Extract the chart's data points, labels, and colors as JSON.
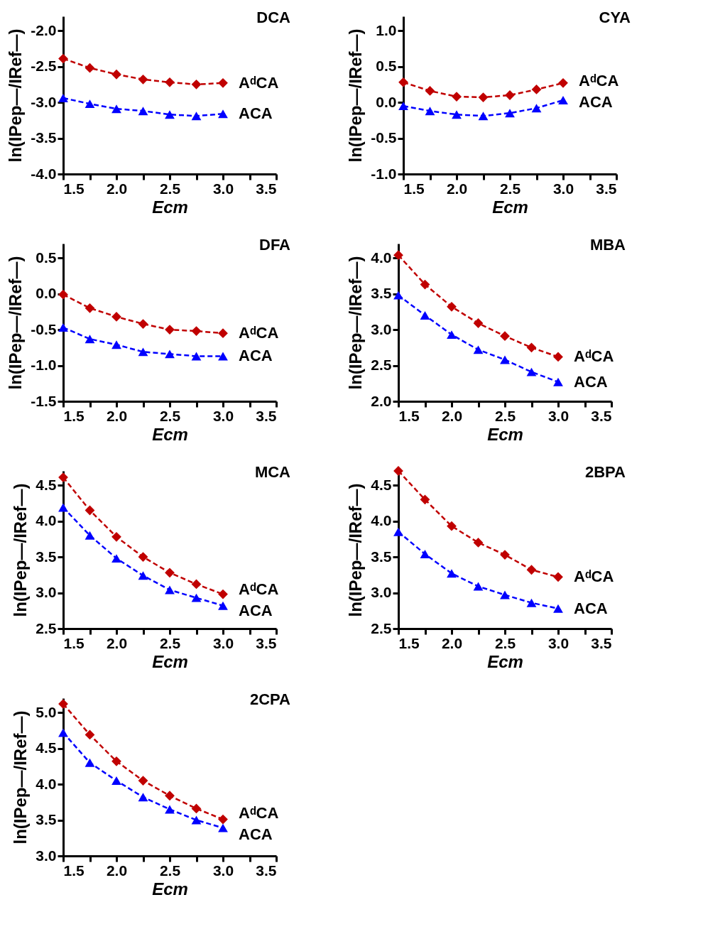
{
  "chart_data": [
    {
      "type": "line",
      "title": "DCA",
      "xlabel": "Ecm",
      "ylabel": "ln(IPep—/IRef—)",
      "x": [
        1.5,
        1.75,
        2.0,
        2.25,
        2.5,
        2.75,
        3.0
      ],
      "xlim": [
        1.5,
        3.5
      ],
      "ylim": [
        -4.0,
        -1.8
      ],
      "xticks": [
        {
          "value": 1.5,
          "label": "1.5"
        },
        {
          "value": 1.75,
          "label": null
        },
        {
          "value": 2,
          "label": "2.0"
        },
        {
          "value": 2.25,
          "label": null
        },
        {
          "value": 2.5,
          "label": "2.5"
        },
        {
          "value": 2.75,
          "label": null
        },
        {
          "value": 3,
          "label": "3.0"
        },
        {
          "value": 3.25,
          "label": null
        },
        {
          "value": 3.5,
          "label": "3.5"
        }
      ],
      "yticks": [
        {
          "value": -4,
          "label": "-4.0"
        },
        {
          "value": -3.5,
          "label": "-3.5"
        },
        {
          "value": -3,
          "label": "-3.0"
        },
        {
          "value": -2.5,
          "label": "-2.5"
        },
        {
          "value": -2,
          "label": "-2.0"
        }
      ],
      "grid": false,
      "line_style": "dashed",
      "series": [
        {
          "name": "AᵈCA",
          "color": "#c00000",
          "marker": "diamond",
          "values": [
            -2.39,
            -2.52,
            -2.61,
            -2.68,
            -2.72,
            -2.75,
            -2.73
          ]
        },
        {
          "name": "ACA",
          "color": "#0000ff",
          "marker": "triangle",
          "values": [
            -2.94,
            -3.02,
            -3.09,
            -3.12,
            -3.17,
            -3.19,
            -3.16
          ]
        }
      ]
    },
    {
      "type": "line",
      "title": "CYA",
      "xlabel": "Ecm",
      "ylabel": "ln(IPep—/IRef—)",
      "x": [
        1.5,
        1.75,
        2.0,
        2.25,
        2.5,
        2.75,
        3.0
      ],
      "xlim": [
        1.5,
        3.5
      ],
      "ylim": [
        -1.0,
        1.2
      ],
      "xticks": [
        {
          "value": 1.5,
          "label": "1.5"
        },
        {
          "value": 1.75,
          "label": null
        },
        {
          "value": 2,
          "label": "2.0"
        },
        {
          "value": 2.25,
          "label": null
        },
        {
          "value": 2.5,
          "label": "2.5"
        },
        {
          "value": 2.75,
          "label": null
        },
        {
          "value": 3,
          "label": "3.0"
        },
        {
          "value": 3.25,
          "label": null
        },
        {
          "value": 3.5,
          "label": "3.5"
        }
      ],
      "yticks": [
        {
          "value": -1,
          "label": "-1.0"
        },
        {
          "value": -0.5,
          "label": "-0.5"
        },
        {
          "value": 0,
          "label": "0.0"
        },
        {
          "value": 0.5,
          "label": "0.5"
        },
        {
          "value": 1,
          "label": "1.0"
        }
      ],
      "grid": false,
      "line_style": "dashed",
      "series": [
        {
          "name": "AᵈCA",
          "color": "#c00000",
          "marker": "diamond",
          "values": [
            0.28,
            0.16,
            0.08,
            0.07,
            0.1,
            0.18,
            0.27
          ]
        },
        {
          "name": "ACA",
          "color": "#0000ff",
          "marker": "triangle",
          "values": [
            -0.05,
            -0.12,
            -0.17,
            -0.19,
            -0.15,
            -0.08,
            0.03
          ]
        }
      ]
    },
    {
      "type": "line",
      "title": "DFA",
      "xlabel": "Ecm",
      "ylabel": "ln(IPep—/IRef—)",
      "x": [
        1.5,
        1.75,
        2.0,
        2.25,
        2.5,
        2.75,
        3.0
      ],
      "xlim": [
        1.5,
        3.5
      ],
      "ylim": [
        -1.5,
        0.7
      ],
      "xticks": [
        {
          "value": 1.5,
          "label": "1.5"
        },
        {
          "value": 1.75,
          "label": null
        },
        {
          "value": 2,
          "label": "2.0"
        },
        {
          "value": 2.25,
          "label": null
        },
        {
          "value": 2.5,
          "label": "2.5"
        },
        {
          "value": 2.75,
          "label": null
        },
        {
          "value": 3,
          "label": "3.0"
        },
        {
          "value": 3.25,
          "label": null
        },
        {
          "value": 3.5,
          "label": "3.5"
        }
      ],
      "yticks": [
        {
          "value": -1.5,
          "label": "-1.5"
        },
        {
          "value": -1,
          "label": "-1.0"
        },
        {
          "value": -0.5,
          "label": "-0.5"
        },
        {
          "value": 0,
          "label": "0.0"
        },
        {
          "value": 0.5,
          "label": "0.5"
        }
      ],
      "grid": false,
      "line_style": "dashed",
      "series": [
        {
          "name": "AᵈCA",
          "color": "#c00000",
          "marker": "diamond",
          "values": [
            -0.01,
            -0.2,
            -0.32,
            -0.42,
            -0.5,
            -0.52,
            -0.55
          ]
        },
        {
          "name": "ACA",
          "color": "#0000ff",
          "marker": "triangle",
          "values": [
            -0.47,
            -0.63,
            -0.71,
            -0.81,
            -0.84,
            -0.87,
            -0.87
          ]
        }
      ]
    },
    {
      "type": "line",
      "title": "MBA",
      "xlabel": "Ecm",
      "ylabel": "ln(IPep—/IRef—)",
      "x": [
        1.5,
        1.75,
        2.0,
        2.25,
        2.5,
        2.75,
        3.0
      ],
      "xlim": [
        1.5,
        3.5
      ],
      "ylim": [
        2.0,
        4.2
      ],
      "xticks": [
        {
          "value": 1.5,
          "label": "1.5"
        },
        {
          "value": 1.75,
          "label": null
        },
        {
          "value": 2,
          "label": "2.0"
        },
        {
          "value": 2.25,
          "label": null
        },
        {
          "value": 2.5,
          "label": "2.5"
        },
        {
          "value": 2.75,
          "label": null
        },
        {
          "value": 3,
          "label": "3.0"
        },
        {
          "value": 3.25,
          "label": null
        },
        {
          "value": 3.5,
          "label": "3.5"
        }
      ],
      "yticks": [
        {
          "value": 2,
          "label": "2.0"
        },
        {
          "value": 2.5,
          "label": "2.5"
        },
        {
          "value": 3,
          "label": "3.0"
        },
        {
          "value": 3.5,
          "label": "3.5"
        },
        {
          "value": 4,
          "label": "4.0"
        }
      ],
      "grid": false,
      "line_style": "dashed",
      "series": [
        {
          "name": "AᵈCA",
          "color": "#c00000",
          "marker": "diamond",
          "values": [
            4.04,
            3.63,
            3.32,
            3.09,
            2.91,
            2.75,
            2.62
          ]
        },
        {
          "name": "ACA",
          "color": "#0000ff",
          "marker": "triangle",
          "values": [
            3.48,
            3.2,
            2.93,
            2.72,
            2.58,
            2.41,
            2.27
          ]
        }
      ]
    },
    {
      "type": "line",
      "title": "MCA",
      "xlabel": "Ecm",
      "ylabel": "ln(IPep—/IRef—)",
      "x": [
        1.5,
        1.75,
        2.0,
        2.25,
        2.5,
        2.75,
        3.0
      ],
      "xlim": [
        1.5,
        3.5
      ],
      "ylim": [
        2.5,
        4.7
      ],
      "xticks": [
        {
          "value": 1.5,
          "label": "1.5"
        },
        {
          "value": 1.75,
          "label": null
        },
        {
          "value": 2,
          "label": "2.0"
        },
        {
          "value": 2.25,
          "label": null
        },
        {
          "value": 2.5,
          "label": "2.5"
        },
        {
          "value": 2.75,
          "label": null
        },
        {
          "value": 3,
          "label": "3.0"
        },
        {
          "value": 3.25,
          "label": null
        },
        {
          "value": 3.5,
          "label": "3.5"
        }
      ],
      "yticks": [
        {
          "value": 2.5,
          "label": "2.5"
        },
        {
          "value": 3,
          "label": "3.0"
        },
        {
          "value": 3.5,
          "label": "3.5"
        },
        {
          "value": 4,
          "label": "4.0"
        },
        {
          "value": 4.5,
          "label": "4.5"
        }
      ],
      "grid": false,
      "line_style": "dashed",
      "series": [
        {
          "name": "AᵈCA",
          "color": "#c00000",
          "marker": "diamond",
          "values": [
            4.61,
            4.15,
            3.78,
            3.5,
            3.28,
            3.12,
            2.98
          ]
        },
        {
          "name": "ACA",
          "color": "#0000ff",
          "marker": "triangle",
          "values": [
            4.19,
            3.8,
            3.48,
            3.24,
            3.04,
            2.93,
            2.82
          ]
        }
      ]
    },
    {
      "type": "line",
      "title": "2BPA",
      "xlabel": "Ecm",
      "ylabel": "ln(IPep—/IRef—)",
      "x": [
        1.5,
        1.75,
        2.0,
        2.25,
        2.5,
        2.75,
        3.0
      ],
      "xlim": [
        1.5,
        3.5
      ],
      "ylim": [
        2.5,
        4.7
      ],
      "xticks": [
        {
          "value": 1.5,
          "label": "1.5"
        },
        {
          "value": 1.75,
          "label": null
        },
        {
          "value": 2,
          "label": "2.0"
        },
        {
          "value": 2.25,
          "label": null
        },
        {
          "value": 2.5,
          "label": "2.5"
        },
        {
          "value": 2.75,
          "label": null
        },
        {
          "value": 3,
          "label": "3.0"
        },
        {
          "value": 3.25,
          "label": null
        },
        {
          "value": 3.5,
          "label": "3.5"
        }
      ],
      "yticks": [
        {
          "value": 2.5,
          "label": "2.5"
        },
        {
          "value": 3,
          "label": "3.0"
        },
        {
          "value": 3.5,
          "label": "3.5"
        },
        {
          "value": 4,
          "label": "4.0"
        },
        {
          "value": 4.5,
          "label": "4.5"
        }
      ],
      "grid": false,
      "line_style": "dashed",
      "series": [
        {
          "name": "AᵈCA",
          "color": "#c00000",
          "marker": "diamond",
          "values": [
            4.7,
            4.3,
            3.93,
            3.7,
            3.53,
            3.32,
            3.22
          ]
        },
        {
          "name": "ACA",
          "color": "#0000ff",
          "marker": "triangle",
          "values": [
            3.85,
            3.54,
            3.27,
            3.09,
            2.97,
            2.86,
            2.78
          ]
        }
      ]
    },
    {
      "type": "line",
      "title": "2CPA",
      "xlabel": "Ecm",
      "ylabel": "ln(IPep—/IRef—)",
      "x": [
        1.5,
        1.75,
        2.0,
        2.25,
        2.5,
        2.75,
        3.0
      ],
      "xlim": [
        1.5,
        3.5
      ],
      "ylim": [
        3.0,
        5.2
      ],
      "xticks": [
        {
          "value": 1.5,
          "label": "1.5"
        },
        {
          "value": 1.75,
          "label": null
        },
        {
          "value": 2,
          "label": "2.0"
        },
        {
          "value": 2.25,
          "label": null
        },
        {
          "value": 2.5,
          "label": "2.5"
        },
        {
          "value": 2.75,
          "label": null
        },
        {
          "value": 3,
          "label": "3.0"
        },
        {
          "value": 3.25,
          "label": null
        },
        {
          "value": 3.5,
          "label": "3.5"
        }
      ],
      "yticks": [
        {
          "value": 3,
          "label": "3.0"
        },
        {
          "value": 3.5,
          "label": "3.5"
        },
        {
          "value": 4,
          "label": "4.0"
        },
        {
          "value": 4.5,
          "label": "4.5"
        },
        {
          "value": 5,
          "label": "5.0"
        }
      ],
      "grid": false,
      "line_style": "dashed",
      "series": [
        {
          "name": "AᵈCA",
          "color": "#c00000",
          "marker": "diamond",
          "values": [
            5.12,
            4.69,
            4.32,
            4.05,
            3.84,
            3.66,
            3.51
          ]
        },
        {
          "name": "ACA",
          "color": "#0000ff",
          "marker": "triangle",
          "values": [
            4.72,
            4.3,
            4.05,
            3.82,
            3.65,
            3.5,
            3.39
          ]
        }
      ]
    }
  ]
}
